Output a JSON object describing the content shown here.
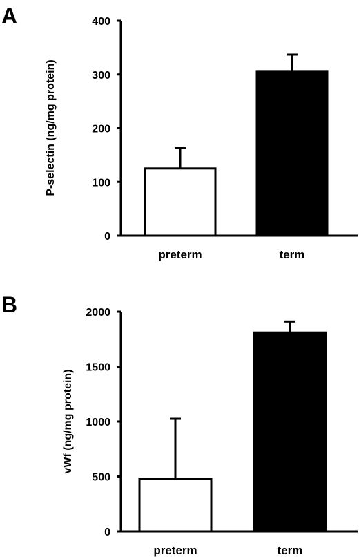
{
  "chart_data": [
    {
      "panel": "A",
      "type": "bar",
      "categories": [
        "preterm",
        "term"
      ],
      "values": [
        125,
        305
      ],
      "errors": [
        38,
        32
      ],
      "bar_colors": [
        "#ffffff",
        "#000000"
      ],
      "title": "",
      "xlabel": "",
      "ylabel": "P-selectin (ng/mg protein)",
      "ylim": [
        0,
        400
      ],
      "yticks": [
        0,
        100,
        200,
        300,
        400
      ],
      "grid": false
    },
    {
      "panel": "B",
      "type": "bar",
      "categories": [
        "preterm",
        "term"
      ],
      "values": [
        475,
        1810
      ],
      "errors": [
        550,
        100
      ],
      "bar_colors": [
        "#ffffff",
        "#000000"
      ],
      "title": "",
      "xlabel": "",
      "ylabel": "vWf  (ng/mg protein)",
      "ylim": [
        0,
        2000
      ],
      "yticks": [
        0,
        500,
        1000,
        1500,
        2000
      ],
      "grid": false
    }
  ]
}
